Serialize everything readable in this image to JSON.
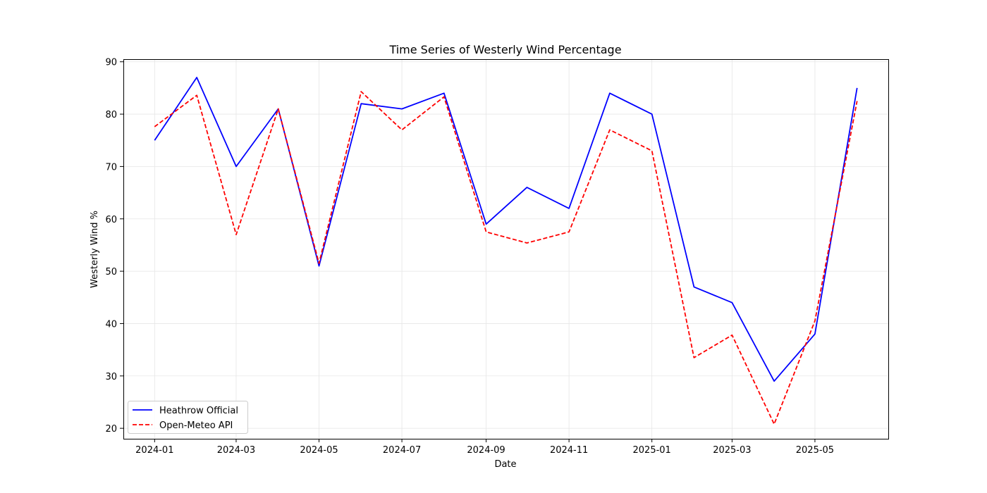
{
  "chart_data": {
    "type": "line",
    "title": "Time Series of Westerly Wind Percentage",
    "xlabel": "Date",
    "ylabel": "Westerly Wind %",
    "x": [
      "2024-01-01",
      "2024-02-01",
      "2024-03-01",
      "2024-04-01",
      "2024-05-01",
      "2024-06-01",
      "2024-07-01",
      "2024-08-01",
      "2024-09-01",
      "2024-10-01",
      "2024-11-01",
      "2024-12-01",
      "2025-01-01",
      "2025-02-01",
      "2025-03-01",
      "2025-04-01",
      "2025-05-01",
      "2025-06-01"
    ],
    "x_ticks": [
      "2024-01",
      "2024-03",
      "2024-05",
      "2024-07",
      "2024-09",
      "2024-11",
      "2025-01",
      "2025-03",
      "2025-05"
    ],
    "xlim": [
      "2023-12-09",
      "2025-06-24"
    ],
    "ylim": [
      18,
      90.5
    ],
    "y_ticks": [
      20,
      30,
      40,
      50,
      60,
      70,
      80,
      90
    ],
    "grid": true,
    "legend_position": "lower-left",
    "series": [
      {
        "name": "Heathrow Official",
        "color": "#0000ff",
        "style": "solid",
        "values": [
          75,
          87,
          70,
          81,
          51,
          82,
          81,
          84,
          59,
          66,
          62,
          84,
          80,
          47,
          44,
          29,
          38,
          85
        ]
      },
      {
        "name": "Open-Meteo API",
        "color": "#ff0000",
        "style": "dashed",
        "values": [
          77.6,
          83.6,
          57,
          81,
          51.5,
          84.3,
          77,
          83.3,
          57.5,
          55.4,
          57.5,
          77,
          73,
          33.5,
          37.8,
          20.8,
          40.5,
          82.5
        ]
      }
    ]
  }
}
